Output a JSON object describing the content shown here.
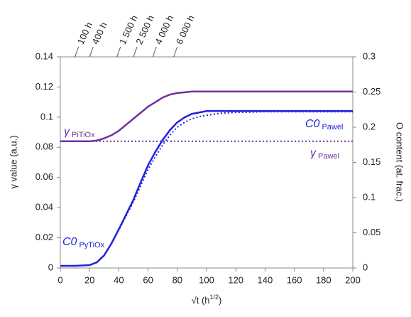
{
  "chart_data": {
    "type": "line",
    "x": [
      0,
      10,
      20,
      25,
      30,
      35,
      40,
      45,
      50,
      55,
      60,
      65,
      70,
      75,
      80,
      85,
      90,
      95,
      100,
      110,
      120,
      140,
      160,
      180,
      200
    ],
    "series": [
      {
        "name": "γ PiTiOx",
        "color": "#7030a0",
        "style": "solid",
        "axis": "y",
        "values": [
          0.084,
          0.084,
          0.084,
          0.0845,
          0.086,
          0.088,
          0.091,
          0.095,
          0.099,
          0.103,
          0.107,
          0.11,
          0.113,
          0.115,
          0.116,
          0.1165,
          0.117,
          0.117,
          0.117,
          0.117,
          0.117,
          0.117,
          0.117,
          0.117,
          0.117
        ]
      },
      {
        "name": "γ Pawel",
        "color": "#7030a0",
        "style": "dotted",
        "axis": "y",
        "values": [
          0.084,
          0.084,
          0.084,
          0.084,
          0.084,
          0.084,
          0.084,
          0.084,
          0.084,
          0.084,
          0.084,
          0.084,
          0.084,
          0.084,
          0.084,
          0.084,
          0.084,
          0.084,
          0.084,
          0.084,
          0.084,
          0.084,
          0.084,
          0.084,
          0.084
        ]
      },
      {
        "name": "C0 PyTiOx",
        "color": "#2222dd",
        "style": "solid",
        "axis": "y2",
        "values": [
          0.003,
          0.003,
          0.004,
          0.008,
          0.018,
          0.035,
          0.055,
          0.076,
          0.097,
          0.122,
          0.146,
          0.165,
          0.182,
          0.196,
          0.207,
          0.214,
          0.219,
          0.221,
          0.223,
          0.223,
          0.223,
          0.223,
          0.223,
          0.223,
          0.223
        ]
      },
      {
        "name": "C0 Pawel",
        "color": "#2222dd",
        "style": "dotted",
        "axis": "y2",
        "values": [
          0.003,
          0.003,
          0.004,
          0.008,
          0.018,
          0.035,
          0.054,
          0.074,
          0.094,
          0.117,
          0.14,
          0.158,
          0.175,
          0.189,
          0.2,
          0.207,
          0.212,
          0.215,
          0.217,
          0.22,
          0.221,
          0.222,
          0.222,
          0.222,
          0.222
        ]
      }
    ],
    "xlim": [
      0,
      200
    ],
    "xticks": [
      0,
      20,
      40,
      60,
      80,
      100,
      120,
      140,
      160,
      180,
      200
    ],
    "ylim": [
      0,
      0.14
    ],
    "yticks": [
      0,
      0.02,
      0.04,
      0.06,
      0.08,
      0.1,
      0.12,
      0.14
    ],
    "y2lim": [
      0,
      0.3
    ],
    "y2ticks": [
      0,
      0.05,
      0.1,
      0.15,
      0.2,
      0.25,
      0.3
    ],
    "top_ticks": [
      {
        "value": 10,
        "label": "100 h"
      },
      {
        "value": 20,
        "label": "400 h"
      },
      {
        "value": 38.7,
        "label": "1 500 h"
      },
      {
        "value": 50,
        "label": "2 500 h"
      },
      {
        "value": 63.2,
        "label": "4 000 h"
      },
      {
        "value": 77.5,
        "label": "6 000 h"
      }
    ],
    "y_label": "γ value (a.u.)",
    "y2_label": "O content (at. frac.)",
    "x_label": [
      "√t (h",
      "1/2",
      ")"
    ],
    "annotations": [
      {
        "symbol": "γ",
        "subscript": "PiTiOx"
      },
      {
        "symbol": "C0",
        "subscript": "Pawel"
      },
      {
        "symbol": "γ",
        "subscript": "Pawel"
      },
      {
        "symbol": "C0",
        "subscript": "PyTiOx"
      }
    ],
    "grid": false
  }
}
